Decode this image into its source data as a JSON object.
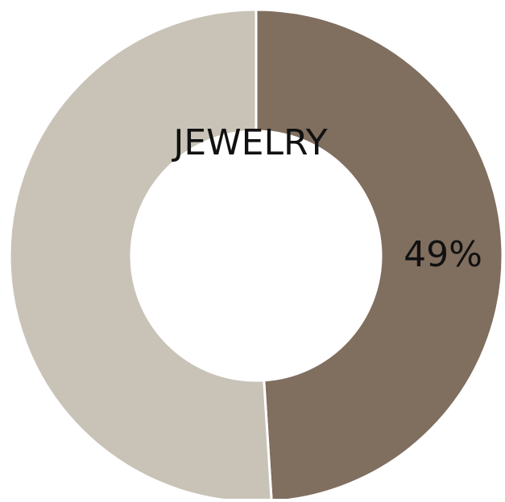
{
  "chart_data": {
    "type": "pie",
    "variant": "donut",
    "title": "JEWELRY",
    "categories": [
      "",
      ""
    ],
    "values": [
      49,
      51
    ],
    "colors": [
      "#806e5f",
      "#c9c3b7"
    ],
    "data_labels": [
      "49%",
      ""
    ],
    "legend": "none"
  }
}
